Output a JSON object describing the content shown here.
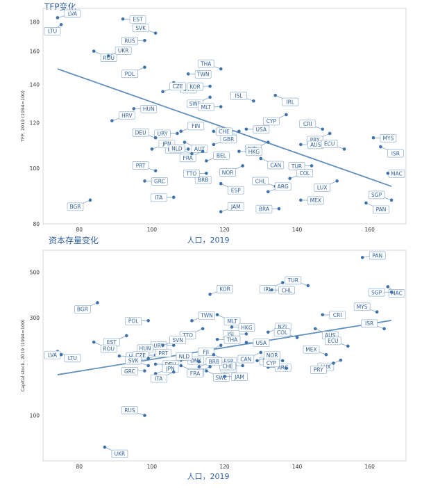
{
  "titles": {
    "top": "TFP变化",
    "bottom": "资本存量变化",
    "xlabel_top": "人口，2019",
    "xlabel_bottom": "人口，2019"
  },
  "chart_data": [
    {
      "type": "scatter",
      "title": "TFP变化",
      "xlabel": "人口，2019",
      "ylabel": "TFP, 2019 (1994=100)",
      "y_scale": "log",
      "xlim": [
        70,
        170
      ],
      "ylim": [
        80,
        190
      ],
      "xticks": [
        80,
        100,
        120,
        140,
        160
      ],
      "yticks": [
        80,
        100,
        120,
        140,
        160,
        180
      ],
      "trendline": [
        [
          74,
          149
        ],
        [
          166,
          93
        ]
      ],
      "points": [
        {
          "label": "LVA",
          "x": 74,
          "y": 183
        },
        {
          "label": "LTU",
          "x": 75,
          "y": 178
        },
        {
          "label": "EST",
          "x": 92,
          "y": 182
        },
        {
          "label": "SVK",
          "x": 101,
          "y": 172
        },
        {
          "label": "ROU",
          "x": 84,
          "y": 160
        },
        {
          "label": "RUS",
          "x": 98,
          "y": 167
        },
        {
          "label": "UKR",
          "x": 88,
          "y": 157
        },
        {
          "label": "POL",
          "x": 98,
          "y": 150
        },
        {
          "label": "TWN",
          "x": 110,
          "y": 146
        },
        {
          "label": "THA",
          "x": 119,
          "y": 149
        },
        {
          "label": "SVN",
          "x": 106,
          "y": 141
        },
        {
          "label": "KOR",
          "x": 116,
          "y": 139
        },
        {
          "label": "CZE",
          "x": 103,
          "y": 136
        },
        {
          "label": "SWE",
          "x": 116,
          "y": 133
        },
        {
          "label": "HUN",
          "x": 95,
          "y": 127
        },
        {
          "label": "ISL",
          "x": 128,
          "y": 131
        },
        {
          "label": "IRL",
          "x": 134,
          "y": 134
        },
        {
          "label": "MLT",
          "x": 119,
          "y": 128
        },
        {
          "label": "HRV",
          "x": 89,
          "y": 121
        },
        {
          "label": "CYP",
          "x": 137,
          "y": 124
        },
        {
          "label": "USA",
          "x": 126,
          "y": 117
        },
        {
          "label": "CRI",
          "x": 147,
          "y": 117
        },
        {
          "label": "FJI",
          "x": 117,
          "y": 116
        },
        {
          "label": "URY",
          "x": 107,
          "y": 115
        },
        {
          "label": "FIN",
          "x": 108,
          "y": 116
        },
        {
          "label": "PRY",
          "x": 149,
          "y": 115
        },
        {
          "label": "MYS",
          "x": 161,
          "y": 113
        },
        {
          "label": "DEU",
          "x": 101,
          "y": 113
        },
        {
          "label": "AUT",
          "x": 109,
          "y": 111
        },
        {
          "label": "CHE",
          "x": 124,
          "y": 116
        },
        {
          "label": "GBR",
          "x": 117,
          "y": 110
        },
        {
          "label": "NZL",
          "x": 132,
          "y": 111
        },
        {
          "label": "AUS",
          "x": 141,
          "y": 110
        },
        {
          "label": "ECU",
          "x": 153,
          "y": 108
        },
        {
          "label": "ISR",
          "x": 163,
          "y": 109
        },
        {
          "label": "DNK",
          "x": 110,
          "y": 108
        },
        {
          "label": "JPN",
          "x": 100,
          "y": 108
        },
        {
          "label": "FRA",
          "x": 114,
          "y": 107
        },
        {
          "label": "HKG",
          "x": 124,
          "y": 107
        },
        {
          "label": "NLD",
          "x": 111,
          "y": 106
        },
        {
          "label": "CAN",
          "x": 130,
          "y": 104
        },
        {
          "label": "TUR",
          "x": 144,
          "y": 101
        },
        {
          "label": "BEL",
          "x": 115,
          "y": 103
        },
        {
          "label": "NOR",
          "x": 125,
          "y": 101
        },
        {
          "label": "MAC",
          "x": 165,
          "y": 98
        },
        {
          "label": "PRT",
          "x": 101,
          "y": 99
        },
        {
          "label": "BRB",
          "x": 110,
          "y": 98
        },
        {
          "label": "TTO",
          "x": 115,
          "y": 98
        },
        {
          "label": "COL",
          "x": 138,
          "y": 96
        },
        {
          "label": "LUX",
          "x": 151,
          "y": 95
        },
        {
          "label": "GRC",
          "x": 98,
          "y": 95
        },
        {
          "label": "CHL",
          "x": 134,
          "y": 93
        },
        {
          "label": "ESP",
          "x": 119,
          "y": 94
        },
        {
          "label": "ITA",
          "x": 106,
          "y": 89
        },
        {
          "label": "ARG",
          "x": 132,
          "y": 91
        },
        {
          "label": "BGR",
          "x": 83,
          "y": 88
        },
        {
          "label": "MEX",
          "x": 141,
          "y": 88
        },
        {
          "label": "SGP",
          "x": 166,
          "y": 88
        },
        {
          "label": "PAN",
          "x": 159,
          "y": 87
        },
        {
          "label": "BRA",
          "x": 135,
          "y": 85
        },
        {
          "label": "JAM",
          "x": 119,
          "y": 84
        }
      ]
    },
    {
      "type": "scatter",
      "title": "资本存量变化",
      "xlabel": "人口，2019",
      "ylabel": "Capital stock, 2019 (1994=100)",
      "y_scale": "log",
      "xlim": [
        70,
        170
      ],
      "ylim": [
        60,
        640
      ],
      "xticks": [
        80,
        100,
        120,
        140,
        160
      ],
      "yticks": [
        100,
        300,
        500
      ],
      "trendline": [
        [
          74,
          158
        ],
        [
          166,
          291
        ]
      ],
      "points": [
        {
          "label": "PAN",
          "x": 158,
          "y": 590
        },
        {
          "label": "IRL",
          "x": 136,
          "y": 445
        },
        {
          "label": "CHL",
          "x": 133,
          "y": 410
        },
        {
          "label": "TUR",
          "x": 143,
          "y": 430
        },
        {
          "label": "MAC",
          "x": 165,
          "y": 425
        },
        {
          "label": "SGP",
          "x": 166,
          "y": 400
        },
        {
          "label": "KOR",
          "x": 116,
          "y": 390
        },
        {
          "label": "BGR",
          "x": 85,
          "y": 355
        },
        {
          "label": "CRI",
          "x": 147,
          "y": 310
        },
        {
          "label": "MYS",
          "x": 162,
          "y": 320
        },
        {
          "label": "MLT",
          "x": 118,
          "y": 310
        },
        {
          "label": "POL",
          "x": 99,
          "y": 290
        },
        {
          "label": "TWN",
          "x": 111,
          "y": 290
        },
        {
          "label": "TTO",
          "x": 114,
          "y": 265
        },
        {
          "label": "HKG",
          "x": 122,
          "y": 270
        },
        {
          "label": "ISR",
          "x": 164,
          "y": 265
        },
        {
          "label": "AUS",
          "x": 145,
          "y": 265
        },
        {
          "label": "ISL",
          "x": 126,
          "y": 250
        },
        {
          "label": "NZL",
          "x": 132,
          "y": 255
        },
        {
          "label": "EST",
          "x": 93,
          "y": 245
        },
        {
          "label": "THA",
          "x": 118,
          "y": 235
        },
        {
          "label": "COL",
          "x": 140,
          "y": 240
        },
        {
          "label": "ROU",
          "x": 84,
          "y": 228
        },
        {
          "label": "URY",
          "x": 106,
          "y": 220
        },
        {
          "label": "SVN",
          "x": 103,
          "y": 220
        },
        {
          "label": "FJI",
          "x": 119,
          "y": 220
        },
        {
          "label": "USA",
          "x": 126,
          "y": 227
        },
        {
          "label": "ECU",
          "x": 154,
          "y": 218
        },
        {
          "label": "LTU",
          "x": 74,
          "y": 205
        },
        {
          "label": "LVA",
          "x": 75,
          "y": 198
        },
        {
          "label": "HUN",
          "x": 94,
          "y": 200
        },
        {
          "label": "CAN",
          "x": 130,
          "y": 203
        },
        {
          "label": "HRV",
          "x": 91,
          "y": 195
        },
        {
          "label": "MEX",
          "x": 148,
          "y": 198
        },
        {
          "label": "ESP",
          "x": 117,
          "y": 198
        },
        {
          "label": "CZE",
          "x": 101,
          "y": 197
        },
        {
          "label": "PRT",
          "x": 99,
          "y": 190
        },
        {
          "label": "LUX",
          "x": 152,
          "y": 186
        },
        {
          "label": "DNK",
          "x": 108,
          "y": 186
        },
        {
          "label": "NLD",
          "x": 113,
          "y": 183
        },
        {
          "label": "GBR",
          "x": 117,
          "y": 183
        },
        {
          "label": "BRA",
          "x": 136,
          "y": 185
        },
        {
          "label": "NOR",
          "x": 129,
          "y": 185
        },
        {
          "label": "PRY",
          "x": 150,
          "y": 180
        },
        {
          "label": "DEU",
          "x": 101,
          "y": 178
        },
        {
          "label": "SVK",
          "x": 99,
          "y": 175
        },
        {
          "label": "FIN",
          "x": 108,
          "y": 175
        },
        {
          "label": "CHE",
          "x": 125,
          "y": 175
        },
        {
          "label": "BRB",
          "x": 113,
          "y": 173
        },
        {
          "label": "FRA",
          "x": 116,
          "y": 173
        },
        {
          "label": "ARG",
          "x": 132,
          "y": 172
        },
        {
          "label": "CYP",
          "x": 137,
          "y": 170
        },
        {
          "label": "SWE",
          "x": 115,
          "y": 165
        },
        {
          "label": "GRC",
          "x": 98,
          "y": 165
        },
        {
          "label": "JPN",
          "x": 101,
          "y": 160
        },
        {
          "label": "ITA",
          "x": 106,
          "y": 163
        },
        {
          "label": "JAM",
          "x": 120,
          "y": 155
        },
        {
          "label": "RUS",
          "x": 98,
          "y": 100
        },
        {
          "label": "UKR",
          "x": 87,
          "y": 70
        }
      ]
    }
  ]
}
